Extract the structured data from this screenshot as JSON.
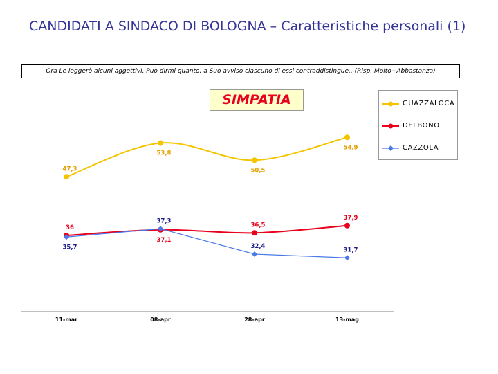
{
  "page": {
    "title": "CANDIDATI A SINDACO DI BOLOGNA – Caratteristiche personali (1)",
    "question": "Ora Le leggerò alcuni aggettivi. Può dirmi quanto, a Suo avviso ciascuno di essi contraddistingue.. (Risp. Molto+Abbastanza)"
  },
  "chart_data": {
    "type": "line",
    "title": "SIMPATIA",
    "categories": [
      "11-mar",
      "08-apr",
      "28-apr",
      "13-mag"
    ],
    "ylim": [
      20,
      60
    ],
    "grid": false,
    "legend_position": "right",
    "series": [
      {
        "name": "GUAZZALOCA",
        "color": "#f5c400",
        "label_color": "#e6a000",
        "marker": "circle",
        "values": [
          47.3,
          53.8,
          50.5,
          54.9
        ],
        "labels": [
          "47,3",
          "53,8",
          "50,5",
          "54,9"
        ],
        "label_side": [
          "above",
          "below",
          "below",
          "below"
        ]
      },
      {
        "name": "DELBONO",
        "color": "#e8001c",
        "label_color": "#e8001c",
        "marker": "circle",
        "values": [
          36,
          37.1,
          36.5,
          37.9
        ],
        "labels": [
          "36",
          "37,1",
          "36,5",
          "37,9"
        ],
        "label_side": [
          "above",
          "below",
          "above",
          "above"
        ]
      },
      {
        "name": "CAZZOLA",
        "color": "#4a7ae8",
        "label_color": "#1a1a8c",
        "marker": "diamond",
        "values": [
          35.7,
          37.3,
          32.4,
          31.7
        ],
        "labels": [
          "35,7",
          "37,3",
          "32,4",
          "31,7"
        ],
        "label_side": [
          "below",
          "above",
          "above",
          "above"
        ]
      }
    ]
  }
}
